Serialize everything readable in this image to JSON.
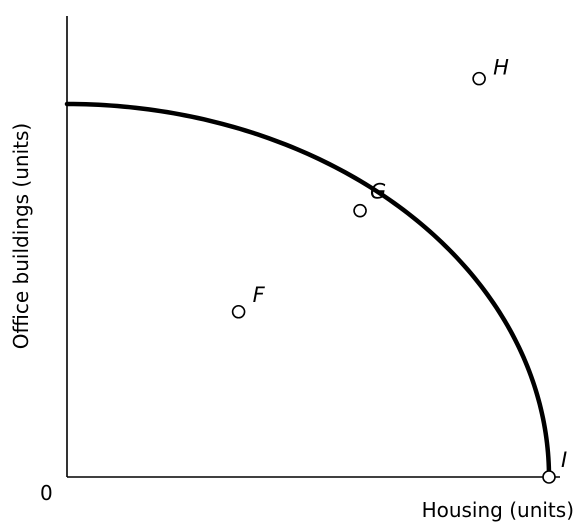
{
  "chart_data": {
    "type": "line",
    "xlabel": "Housing (units)",
    "ylabel": "Office buildings (units)",
    "origin_label": "0",
    "xlim": [
      0,
      100
    ],
    "ylim": [
      0,
      100
    ],
    "grid": false,
    "series": [
      {
        "x": [
          0,
          10,
          20,
          30,
          40,
          50,
          60,
          70,
          80,
          90,
          95,
          100
        ],
        "y": [
          100,
          99.5,
          98,
          95.4,
          91.7,
          86.6,
          80,
          71.4,
          60,
          43.6,
          31.2,
          0
        ]
      }
    ],
    "points": [
      {
        "label": "F",
        "x": 35.6,
        "y": 44.3
      },
      {
        "label": "G",
        "x": 60.8,
        "y": 71.4
      },
      {
        "label": "H",
        "x": 85.5,
        "y": 106.8
      },
      {
        "label": "I",
        "x": 100,
        "y": 0
      }
    ]
  }
}
